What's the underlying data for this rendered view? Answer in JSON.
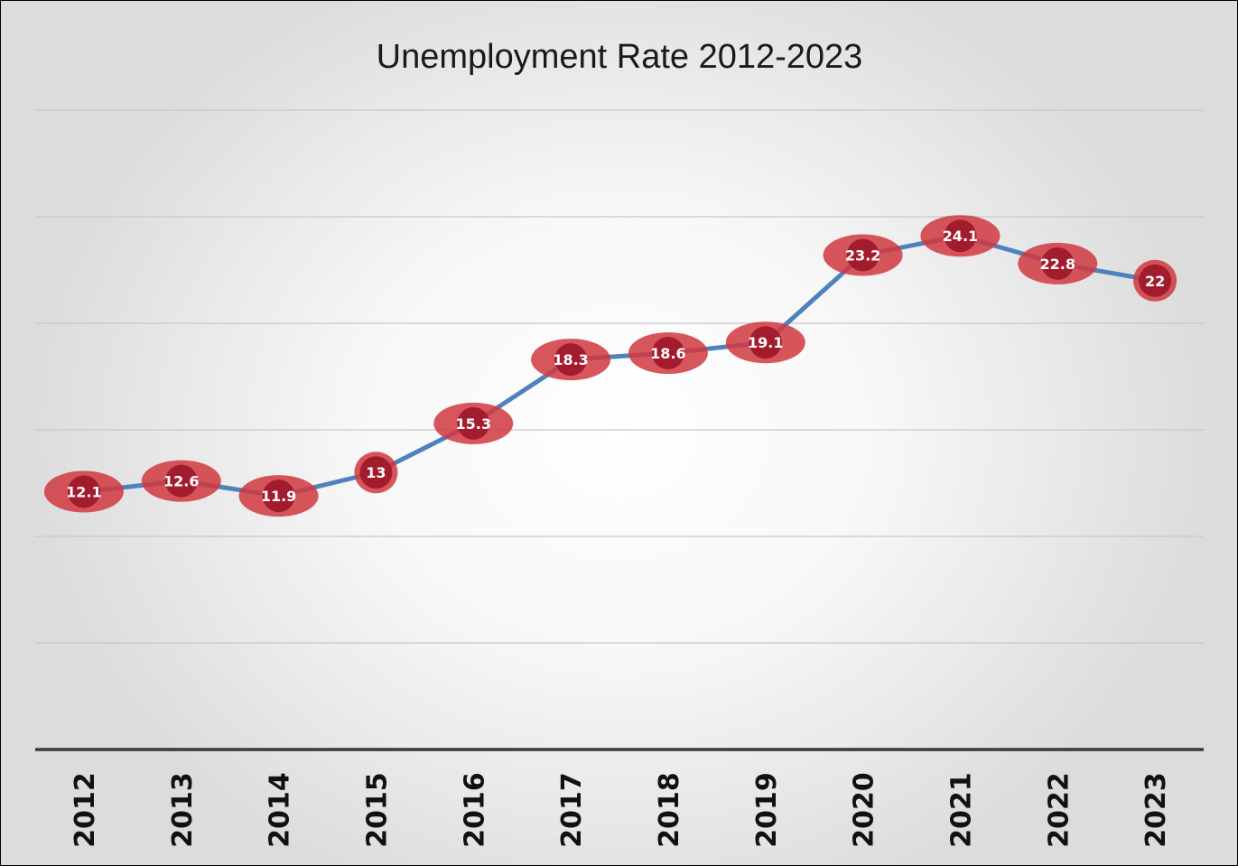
{
  "chart_data": {
    "type": "line",
    "title": "Unemployment Rate 2012-2023",
    "xlabel": "",
    "ylabel": "",
    "categories": [
      "2012",
      "2013",
      "2014",
      "2015",
      "2016",
      "2017",
      "2018",
      "2019",
      "2020",
      "2021",
      "2022",
      "2023"
    ],
    "series": [
      {
        "values": [
          12.1,
          12.6,
          11.9,
          13,
          15.3,
          18.3,
          18.6,
          19.1,
          23.2,
          24.1,
          22.8,
          22
        ]
      }
    ],
    "ylim": [
      0,
      30
    ],
    "y_gridline_step": 5,
    "grid": true,
    "legend": "none",
    "data_labels": true,
    "y_tick_labels_shown": false,
    "colors": {
      "line": "#4f81bd",
      "marker_fill": "#a31c2e",
      "marker_halo": "#d0383f",
      "gridline": "#c8c8c8",
      "axis_line": "#3a3a3a",
      "data_label": "#ffffff",
      "background_center": "#ffffff",
      "background_edge": "#dcdcdc"
    }
  }
}
